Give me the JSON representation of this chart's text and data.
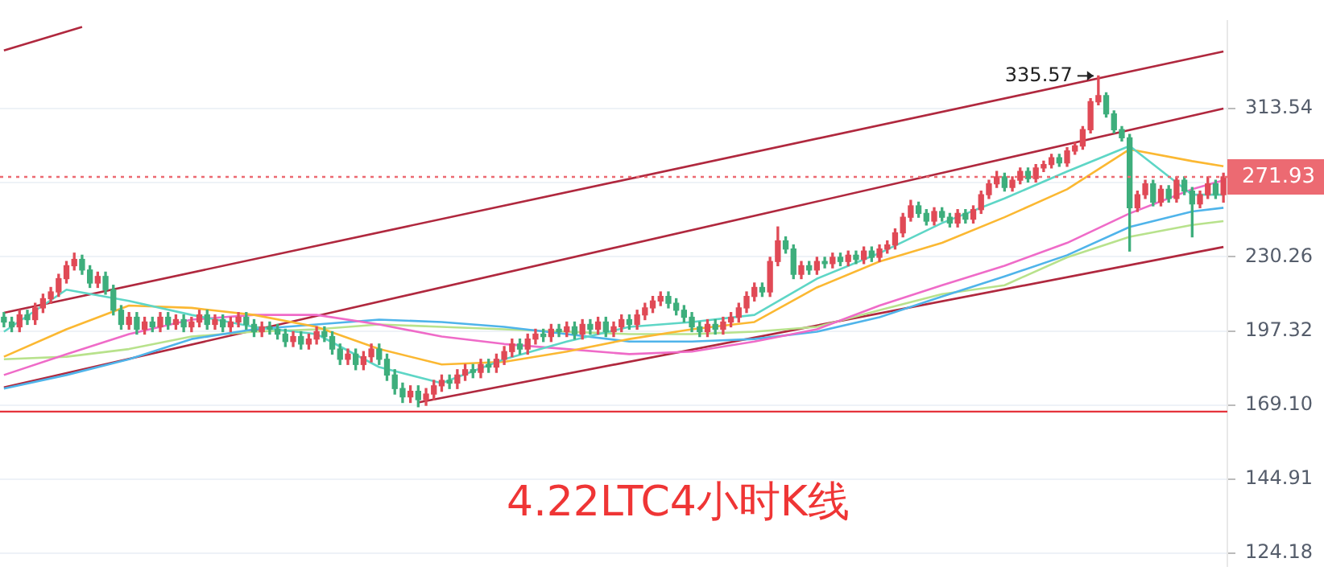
{
  "chart_data": {
    "type": "candlestick",
    "title": "4.22LTC4小时K线",
    "categories": [
      null,
      null,
      null,
      null,
      null,
      null,
      null,
      null,
      null,
      null,
      null,
      null,
      null,
      null,
      null,
      null,
      null,
      null,
      null,
      null,
      null,
      null,
      null,
      null,
      null,
      null,
      null,
      null,
      null,
      null,
      null,
      null,
      null,
      null,
      null,
      null,
      null,
      null,
      null,
      null,
      null,
      null,
      null,
      null,
      null,
      null,
      null,
      null,
      null,
      null,
      null,
      null,
      null,
      null,
      null,
      null,
      null,
      null,
      null,
      null,
      null,
      null,
      null,
      null,
      null,
      null,
      null,
      null,
      null,
      null,
      null,
      null,
      null,
      null,
      null,
      null,
      null,
      null,
      null,
      null,
      null,
      null,
      null,
      null,
      null,
      null,
      null,
      null,
      null,
      null,
      null,
      null,
      null,
      null,
      null,
      null,
      null,
      null,
      null,
      null,
      null,
      null,
      null,
      null,
      null,
      null,
      null,
      null,
      null,
      null,
      null,
      null,
      null,
      null,
      null,
      null,
      null,
      null,
      null,
      null,
      null,
      null,
      null,
      null,
      null,
      null,
      null,
      null,
      null,
      null,
      null,
      null,
      null,
      null,
      null,
      null,
      null,
      null,
      null,
      null,
      null,
      null,
      null,
      null,
      null,
      null,
      null,
      null,
      null,
      null,
      null,
      null,
      null,
      null,
      null,
      null,
      null
    ],
    "ohlc": [
      [
        203,
        205,
        199,
        201
      ],
      [
        201,
        203,
        197,
        199
      ],
      [
        199,
        206,
        197,
        204
      ],
      [
        204,
        206,
        200,
        202
      ],
      [
        202,
        209,
        200,
        207
      ],
      [
        207,
        213,
        205,
        211
      ],
      [
        211,
        216,
        209,
        214
      ],
      [
        214,
        222,
        212,
        220
      ],
      [
        220,
        228,
        218,
        226
      ],
      [
        226,
        232,
        224,
        229
      ],
      [
        229,
        231,
        222,
        224
      ],
      [
        224,
        226,
        216,
        218
      ],
      [
        218,
        223,
        216,
        221
      ],
      [
        221,
        223,
        213,
        215
      ],
      [
        215,
        217,
        204,
        206
      ],
      [
        206,
        208,
        198,
        200
      ],
      [
        200,
        205,
        198,
        203
      ],
      [
        203,
        205,
        196,
        198
      ],
      [
        198,
        203,
        196,
        201
      ],
      [
        201,
        203,
        197,
        199
      ],
      [
        199,
        205,
        197,
        203
      ],
      [
        203,
        205,
        198,
        200
      ],
      [
        200,
        204,
        198,
        202
      ],
      [
        202,
        204,
        197,
        199
      ],
      [
        199,
        203,
        197,
        201
      ],
      [
        201,
        206,
        199,
        204
      ],
      [
        204,
        206,
        198,
        200
      ],
      [
        200,
        204,
        198,
        202
      ],
      [
        202,
        204,
        197,
        199
      ],
      [
        199,
        203,
        197,
        201
      ],
      [
        201,
        205,
        199,
        203
      ],
      [
        203,
        205,
        198,
        200
      ],
      [
        200,
        202,
        195,
        197
      ],
      [
        197,
        201,
        195,
        199
      ],
      [
        199,
        201,
        196,
        198
      ],
      [
        198,
        200,
        194,
        196
      ],
      [
        196,
        198,
        191,
        193
      ],
      [
        193,
        197,
        191,
        195
      ],
      [
        195,
        197,
        190,
        192
      ],
      [
        192,
        196,
        190,
        194
      ],
      [
        194,
        199,
        192,
        197
      ],
      [
        197,
        199,
        193,
        195
      ],
      [
        195,
        197,
        188,
        190
      ],
      [
        190,
        192,
        184,
        186
      ],
      [
        186,
        190,
        184,
        188
      ],
      [
        188,
        190,
        182,
        184
      ],
      [
        184,
        189,
        182,
        187
      ],
      [
        187,
        192,
        185,
        190
      ],
      [
        190,
        192,
        184,
        186
      ],
      [
        186,
        188,
        178,
        180
      ],
      [
        180,
        182,
        173,
        175
      ],
      [
        175,
        177,
        170,
        172
      ],
      [
        172,
        176,
        170,
        174
      ],
      [
        174,
        176,
        168.5,
        171
      ],
      [
        171,
        175,
        169,
        173
      ],
      [
        173,
        178,
        171,
        176
      ],
      [
        176,
        180,
        174,
        178
      ],
      [
        178,
        180,
        175,
        177
      ],
      [
        177,
        182,
        175,
        180
      ],
      [
        180,
        184,
        178,
        182
      ],
      [
        182,
        184,
        179,
        181
      ],
      [
        181,
        186,
        179,
        184
      ],
      [
        184,
        186,
        181,
        183
      ],
      [
        183,
        188,
        181,
        186
      ],
      [
        186,
        191,
        184,
        189
      ],
      [
        189,
        194,
        187,
        192
      ],
      [
        192,
        194,
        188,
        190
      ],
      [
        190,
        196,
        188,
        194
      ],
      [
        194,
        198,
        192,
        196
      ],
      [
        196,
        198,
        193,
        195
      ],
      [
        195,
        200,
        193,
        198
      ],
      [
        198,
        200,
        195,
        197
      ],
      [
        197,
        201,
        195,
        199
      ],
      [
        199,
        201,
        194,
        196
      ],
      [
        196,
        202,
        194,
        200
      ],
      [
        200,
        202,
        196,
        198
      ],
      [
        198,
        203,
        196,
        201
      ],
      [
        201,
        203,
        195,
        197
      ],
      [
        197,
        201,
        195,
        199
      ],
      [
        199,
        204,
        197,
        202
      ],
      [
        202,
        204,
        198,
        200
      ],
      [
        200,
        206,
        198,
        204
      ],
      [
        204,
        209,
        202,
        207
      ],
      [
        207,
        212,
        205,
        210
      ],
      [
        210,
        214,
        208,
        212
      ],
      [
        212,
        214,
        207,
        209
      ],
      [
        209,
        211,
        204,
        206
      ],
      [
        206,
        208,
        201,
        203
      ],
      [
        203,
        205,
        197,
        199
      ],
      [
        199,
        201,
        195,
        197
      ],
      [
        197,
        202,
        195,
        200
      ],
      [
        200,
        202,
        196,
        198
      ],
      [
        198,
        203,
        196,
        201
      ],
      [
        201,
        205,
        199,
        203
      ],
      [
        203,
        209,
        201,
        207
      ],
      [
        207,
        214,
        205,
        212
      ],
      [
        212,
        218,
        210,
        216
      ],
      [
        216,
        218,
        212,
        214
      ],
      [
        214,
        230,
        212,
        228
      ],
      [
        228,
        245,
        226,
        238
      ],
      [
        238,
        240,
        232,
        234
      ],
      [
        234,
        236,
        220,
        222
      ],
      [
        222,
        228,
        220,
        226
      ],
      [
        226,
        228,
        222,
        224
      ],
      [
        224,
        230,
        222,
        228
      ],
      [
        228,
        230,
        225,
        227
      ],
      [
        227,
        232,
        225,
        230
      ],
      [
        230,
        232,
        226,
        228
      ],
      [
        228,
        233,
        226,
        231
      ],
      [
        231,
        233,
        227,
        229
      ],
      [
        229,
        235,
        227,
        233
      ],
      [
        233,
        235,
        228,
        230
      ],
      [
        230,
        236,
        228,
        234
      ],
      [
        234,
        238,
        232,
        236
      ],
      [
        236,
        244,
        234,
        242
      ],
      [
        242,
        252,
        240,
        250
      ],
      [
        250,
        259,
        248,
        256
      ],
      [
        256,
        258,
        250,
        252
      ],
      [
        252,
        254,
        246,
        248
      ],
      [
        248,
        255,
        246,
        253
      ],
      [
        253,
        255,
        248,
        250
      ],
      [
        250,
        252,
        245,
        247
      ],
      [
        247,
        254,
        245,
        252
      ],
      [
        252,
        254,
        247,
        249
      ],
      [
        249,
        256,
        247,
        254
      ],
      [
        254,
        264,
        252,
        262
      ],
      [
        262,
        270,
        260,
        268
      ],
      [
        268,
        275,
        266,
        272
      ],
      [
        272,
        274,
        264,
        266
      ],
      [
        266,
        272,
        264,
        270
      ],
      [
        270,
        277,
        268,
        275
      ],
      [
        275,
        277,
        269,
        271
      ],
      [
        271,
        279,
        269,
        277
      ],
      [
        277,
        281,
        275,
        279
      ],
      [
        279,
        285,
        277,
        283
      ],
      [
        283,
        285,
        278,
        280
      ],
      [
        280,
        289,
        278,
        287
      ],
      [
        287,
        292,
        285,
        290
      ],
      [
        290,
        302,
        288,
        300
      ],
      [
        300,
        320,
        298,
        318
      ],
      [
        318,
        335.57,
        316,
        322
      ],
      [
        322,
        324,
        308,
        310
      ],
      [
        310,
        312,
        298,
        300
      ],
      [
        300,
        302,
        293,
        295
      ],
      [
        295,
        297,
        233,
        255
      ],
      [
        255,
        264,
        253,
        262
      ],
      [
        262,
        270,
        260,
        268
      ],
      [
        268,
        270,
        256,
        258
      ],
      [
        258,
        267,
        256,
        265
      ],
      [
        265,
        267,
        258,
        260
      ],
      [
        260,
        272,
        258,
        270
      ],
      [
        270,
        272,
        262,
        264
      ],
      [
        264,
        266,
        240,
        257
      ],
      [
        257,
        264,
        255,
        262
      ],
      [
        262,
        272,
        260,
        268
      ],
      [
        268,
        270,
        260,
        262
      ],
      [
        262,
        274,
        258,
        271.93
      ]
    ],
    "colors": [
      "#3eae7c",
      "#3eae7c",
      "#e04a56",
      "#3eae7c",
      "#e04a56",
      "#e04a56",
      "#e04a56",
      "#e04a56",
      "#e04a56",
      "#e04a56",
      "#3eae7c",
      "#3eae7c",
      "#e04a56",
      "#3eae7c",
      "#3eae7c",
      "#3eae7c",
      "#e04a56",
      "#3eae7c",
      "#e04a56",
      "#3eae7c",
      "#e04a56",
      "#3eae7c",
      "#e04a56",
      "#3eae7c",
      "#e04a56",
      "#e04a56",
      "#3eae7c",
      "#e04a56",
      "#3eae7c",
      "#e04a56",
      "#e04a56",
      "#3eae7c",
      "#3eae7c",
      "#e04a56",
      "#3eae7c",
      "#3eae7c",
      "#3eae7c",
      "#e04a56",
      "#3eae7c",
      "#e04a56",
      "#e04a56",
      "#3eae7c",
      "#3eae7c",
      "#3eae7c",
      "#e04a56",
      "#3eae7c",
      "#e04a56",
      "#e04a56",
      "#3eae7c",
      "#3eae7c",
      "#3eae7c",
      "#3eae7c",
      "#e04a56",
      "#3eae7c",
      "#e04a56",
      "#e04a56",
      "#e04a56",
      "#3eae7c",
      "#e04a56",
      "#e04a56",
      "#3eae7c",
      "#e04a56",
      "#3eae7c",
      "#e04a56",
      "#e04a56",
      "#e04a56",
      "#3eae7c",
      "#e04a56",
      "#e04a56",
      "#3eae7c",
      "#e04a56",
      "#3eae7c",
      "#e04a56",
      "#3eae7c",
      "#e04a56",
      "#3eae7c",
      "#e04a56",
      "#3eae7c",
      "#e04a56",
      "#e04a56",
      "#3eae7c",
      "#e04a56",
      "#e04a56",
      "#e04a56",
      "#e04a56",
      "#3eae7c",
      "#3eae7c",
      "#3eae7c",
      "#3eae7c",
      "#3eae7c",
      "#e04a56",
      "#3eae7c",
      "#e04a56",
      "#e04a56",
      "#e04a56",
      "#e04a56",
      "#e04a56",
      "#3eae7c",
      "#e04a56",
      "#e04a56",
      "#3eae7c",
      "#3eae7c",
      "#e04a56",
      "#3eae7c",
      "#e04a56",
      "#3eae7c",
      "#e04a56",
      "#3eae7c",
      "#e04a56",
      "#3eae7c",
      "#e04a56",
      "#3eae7c",
      "#e04a56",
      "#e04a56",
      "#e04a56",
      "#e04a56",
      "#e04a56",
      "#3eae7c",
      "#3eae7c",
      "#e04a56",
      "#3eae7c",
      "#3eae7c",
      "#e04a56",
      "#3eae7c",
      "#e04a56",
      "#e04a56",
      "#e04a56",
      "#e04a56",
      "#3eae7c",
      "#e04a56",
      "#e04a56",
      "#3eae7c",
      "#e04a56",
      "#e04a56",
      "#e04a56",
      "#3eae7c",
      "#e04a56",
      "#e04a56",
      "#e04a56",
      "#e04a56",
      "#e04a56",
      "#3eae7c",
      "#3eae7c",
      "#3eae7c",
      "#3eae7c",
      "#e04a56",
      "#e04a56",
      "#3eae7c",
      "#e04a56",
      "#3eae7c",
      "#e04a56",
      "#3eae7c",
      "#3eae7c",
      "#e04a56",
      "#e04a56",
      "#3eae7c",
      "#e04a56"
    ],
    "series": [
      {
        "type": "line",
        "color": "#5ed6c6",
        "values": [
          197,
          null,
          null,
          null,
          null,
          null,
          null,
          null,
          215,
          null,
          null,
          null,
          null,
          null,
          null,
          null,
          210,
          null,
          null,
          null,
          null,
          null,
          null,
          null,
          204,
          null,
          null,
          null,
          null,
          null,
          null,
          null,
          199,
          null,
          null,
          null,
          null,
          null,
          null,
          null,
          196,
          null,
          null,
          null,
          null,
          null,
          null,
          null,
          183,
          null,
          null,
          null,
          null,
          null,
          null,
          null,
          177,
          null,
          null,
          null,
          null,
          null,
          null,
          null,
          186,
          null,
          null,
          null,
          null,
          null,
          null,
          null,
          193,
          null,
          null,
          null,
          null,
          null,
          null,
          null,
          199,
          null,
          null,
          null,
          null,
          null,
          null,
          null,
          201,
          null,
          null,
          null,
          null,
          null,
          null,
          null,
          204,
          null,
          null,
          null,
          null,
          null,
          null,
          null,
          220,
          null,
          null,
          null,
          null,
          null,
          null,
          null,
          232,
          null,
          null,
          null,
          null,
          null,
          null,
          null,
          247,
          null,
          null,
          null,
          null,
          null,
          null,
          null,
          260,
          null,
          null,
          null,
          null,
          null,
          null,
          null,
          275,
          null,
          null,
          null,
          null,
          null,
          null,
          null,
          290,
          null,
          null,
          null,
          null,
          null,
          null,
          null,
          262,
          null,
          null,
          null,
          262
        ]
      },
      {
        "type": "line",
        "color": "#fbb832",
        "values": [
          187,
          null,
          null,
          null,
          null,
          null,
          null,
          null,
          198,
          null,
          null,
          null,
          null,
          null,
          null,
          null,
          208,
          null,
          null,
          null,
          null,
          null,
          null,
          null,
          207,
          null,
          null,
          null,
          null,
          null,
          null,
          null,
          204,
          null,
          null,
          null,
          null,
          null,
          null,
          null,
          199,
          null,
          null,
          null,
          null,
          null,
          null,
          null,
          190,
          null,
          null,
          null,
          null,
          null,
          null,
          null,
          184,
          null,
          null,
          null,
          null,
          null,
          null,
          null,
          185,
          null,
          null,
          null,
          null,
          null,
          null,
          null,
          189,
          null,
          null,
          null,
          null,
          null,
          null,
          null,
          194,
          null,
          null,
          null,
          null,
          null,
          null,
          null,
          198,
          null,
          null,
          null,
          null,
          null,
          null,
          null,
          201,
          null,
          null,
          null,
          null,
          null,
          null,
          null,
          216,
          null,
          null,
          null,
          null,
          null,
          null,
          null,
          228,
          null,
          null,
          null,
          null,
          null,
          null,
          null,
          237,
          null,
          null,
          null,
          null,
          null,
          null,
          null,
          250,
          null,
          null,
          null,
          null,
          null,
          null,
          null,
          265,
          null,
          null,
          null,
          null,
          null,
          null,
          null,
          288,
          null,
          null,
          null,
          null,
          null,
          null,
          null,
          281,
          null,
          null,
          null,
          278
        ]
      },
      {
        "type": "line",
        "color": "#ef6bc8",
        "values": [
          180,
          null,
          null,
          null,
          null,
          null,
          null,
          null,
          188,
          null,
          null,
          null,
          null,
          null,
          null,
          null,
          196,
          null,
          null,
          null,
          null,
          null,
          null,
          null,
          202,
          null,
          null,
          null,
          null,
          null,
          null,
          null,
          204,
          null,
          null,
          null,
          null,
          null,
          null,
          null,
          204,
          null,
          null,
          null,
          null,
          null,
          null,
          null,
          200,
          null,
          null,
          null,
          null,
          null,
          null,
          null,
          195,
          null,
          null,
          null,
          null,
          null,
          null,
          null,
          192,
          null,
          null,
          null,
          null,
          null,
          null,
          null,
          190,
          null,
          null,
          null,
          null,
          null,
          null,
          null,
          188,
          null,
          null,
          null,
          null,
          null,
          null,
          null,
          189,
          null,
          null,
          null,
          null,
          null,
          null,
          null,
          193,
          null,
          null,
          null,
          null,
          null,
          null,
          null,
          198,
          null,
          null,
          null,
          null,
          null,
          null,
          null,
          208,
          null,
          null,
          null,
          null,
          null,
          null,
          null,
          217,
          null,
          null,
          null,
          null,
          null,
          null,
          null,
          226,
          null,
          null,
          null,
          null,
          null,
          null,
          null,
          237,
          null,
          null,
          null,
          null,
          null,
          null,
          null,
          252,
          null,
          null,
          null,
          null,
          null,
          null,
          null,
          265,
          null,
          null,
          null,
          270
        ]
      },
      {
        "type": "line",
        "color": "#4fb4ea",
        "values": [
          175,
          null,
          null,
          null,
          null,
          null,
          null,
          null,
          180,
          null,
          null,
          null,
          null,
          null,
          null,
          null,
          186,
          null,
          null,
          null,
          null,
          null,
          null,
          null,
          194,
          null,
          null,
          null,
          null,
          null,
          null,
          null,
          198,
          null,
          null,
          null,
          null,
          null,
          null,
          null,
          200,
          null,
          null,
          null,
          null,
          null,
          null,
          null,
          202,
          null,
          null,
          null,
          null,
          null,
          null,
          null,
          201,
          null,
          null,
          null,
          null,
          null,
          null,
          null,
          199,
          null,
          null,
          null,
          null,
          null,
          null,
          null,
          196,
          null,
          null,
          null,
          null,
          null,
          null,
          null,
          193,
          null,
          null,
          null,
          null,
          null,
          null,
          null,
          193,
          null,
          null,
          null,
          null,
          null,
          null,
          null,
          194,
          null,
          null,
          null,
          null,
          null,
          null,
          null,
          197,
          null,
          null,
          null,
          null,
          null,
          null,
          null,
          203,
          null,
          null,
          null,
          null,
          null,
          null,
          null,
          212,
          null,
          null,
          null,
          null,
          null,
          null,
          null,
          221,
          null,
          null,
          null,
          null,
          null,
          null,
          null,
          231,
          null,
          null,
          null,
          null,
          null,
          null,
          null,
          245,
          null,
          null,
          null,
          null,
          null,
          null,
          null,
          253,
          null,
          null,
          null,
          255
        ]
      },
      {
        "type": "line",
        "color": "#b8e28c",
        "values": [
          186,
          null,
          null,
          null,
          null,
          null,
          null,
          null,
          187,
          null,
          null,
          null,
          null,
          null,
          null,
          null,
          190,
          null,
          null,
          null,
          null,
          null,
          null,
          null,
          195,
          null,
          null,
          null,
          null,
          null,
          null,
          null,
          197,
          null,
          null,
          null,
          null,
          null,
          null,
          null,
          198,
          null,
          null,
          null,
          null,
          null,
          null,
          null,
          200,
          null,
          null,
          null,
          null,
          null,
          null,
          null,
          199,
          null,
          null,
          null,
          null,
          null,
          null,
          null,
          198,
          null,
          null,
          null,
          null,
          null,
          null,
          null,
          197,
          null,
          null,
          null,
          null,
          null,
          null,
          null,
          196,
          null,
          null,
          null,
          null,
          null,
          null,
          null,
          196,
          null,
          null,
          null,
          null,
          null,
          null,
          null,
          197,
          null,
          null,
          null,
          null,
          null,
          null,
          null,
          199,
          null,
          null,
          null,
          null,
          null,
          null,
          null,
          206,
          null,
          null,
          null,
          null,
          null,
          null,
          null,
          213,
          null,
          null,
          null,
          null,
          null,
          null,
          null,
          217,
          null,
          null,
          null,
          null,
          null,
          null,
          null,
          230,
          null,
          null,
          null,
          null,
          null,
          null,
          null,
          240,
          null,
          null,
          null,
          null,
          null,
          null,
          null,
          246,
          null,
          null,
          null,
          248
        ]
      },
      {
        "type": "line",
        "color": "#b0283e",
        "values": [
          353.8,
          null,
          null,
          null,
          null,
          null,
          null,
          null,
          null,
          null,
          371.5,
          null,
          null,
          null,
          null,
          null,
          null,
          null,
          null,
          null,
          null,
          null,
          null,
          null,
          null,
          null,
          null,
          null,
          null,
          null,
          null,
          null,
          null,
          null,
          null,
          null,
          null,
          null,
          null,
          null,
          null,
          null,
          null,
          null,
          null,
          null,
          null,
          null,
          null,
          null,
          null,
          null,
          null,
          null,
          null,
          null,
          null,
          null,
          null,
          null,
          null,
          null,
          null,
          null,
          null,
          null,
          null,
          null,
          null,
          null,
          null,
          null,
          null,
          null,
          null,
          null,
          null,
          null,
          null,
          null,
          null,
          null,
          null,
          null,
          null,
          null,
          null,
          null,
          null,
          null,
          null,
          null,
          null,
          null,
          null,
          null,
          null,
          null,
          null,
          null,
          null,
          null,
          null,
          null,
          null,
          null,
          null,
          null,
          null,
          null,
          null,
          null,
          null,
          null,
          null,
          null,
          null,
          null,
          null,
          null,
          null,
          null,
          null,
          null,
          null,
          null,
          null,
          null,
          null,
          null,
          null,
          null,
          null,
          null,
          null,
          null,
          null,
          null,
          null,
          null,
          null,
          null,
          null,
          null,
          null,
          null,
          null,
          null,
          null,
          null,
          null,
          null,
          null,
          null,
          null,
          null,
          null
        ]
      },
      {
        "type": "line",
        "color": "#b0283e",
        "values": [
          204.9,
          null,
          null,
          null,
          null,
          null,
          null,
          null,
          null,
          null,
          null,
          null,
          null,
          null,
          null,
          null,
          null,
          null,
          null,
          null,
          null,
          null,
          null,
          null,
          null,
          null,
          null,
          null,
          null,
          null,
          null,
          null,
          null,
          null,
          null,
          null,
          null,
          null,
          null,
          null,
          null,
          null,
          null,
          null,
          null,
          null,
          null,
          null,
          null,
          null,
          null,
          null,
          null,
          null,
          null,
          null,
          null,
          null,
          null,
          null,
          null,
          null,
          null,
          null,
          null,
          null,
          null,
          null,
          null,
          null,
          null,
          null,
          null,
          null,
          null,
          null,
          null,
          null,
          null,
          null,
          null,
          null,
          null,
          null,
          null,
          null,
          null,
          null,
          null,
          null,
          null,
          null,
          null,
          null,
          null,
          null,
          null,
          null,
          null,
          null,
          null,
          null,
          null,
          null,
          null,
          null,
          null,
          null,
          null,
          null,
          null,
          null,
          null,
          null,
          null,
          null,
          null,
          null,
          null,
          null,
          null,
          null,
          null,
          null,
          null,
          null,
          null,
          null,
          null,
          null,
          null,
          null,
          null,
          null,
          null,
          null,
          null,
          null,
          null,
          null,
          null,
          null,
          null,
          null,
          null,
          null,
          null,
          null,
          null,
          null,
          null,
          null,
          null,
          null,
          null,
          null,
          353
        ]
      },
      {
        "type": "line",
        "color": "#b0283e",
        "values": [
          175.4,
          null,
          null,
          null,
          null,
          null,
          null,
          null,
          null,
          null,
          null,
          null,
          null,
          null,
          null,
          null,
          null,
          null,
          null,
          null,
          null,
          null,
          null,
          null,
          null,
          null,
          null,
          null,
          null,
          null,
          null,
          null,
          null,
          null,
          null,
          null,
          null,
          null,
          null,
          null,
          null,
          null,
          null,
          null,
          null,
          null,
          null,
          null,
          null,
          null,
          null,
          null,
          null,
          null,
          null,
          null,
          null,
          null,
          null,
          null,
          null,
          null,
          null,
          null,
          null,
          null,
          null,
          null,
          null,
          null,
          null,
          null,
          null,
          null,
          null,
          null,
          null,
          null,
          null,
          null,
          null,
          null,
          null,
          null,
          null,
          null,
          null,
          null,
          null,
          null,
          null,
          null,
          null,
          null,
          null,
          null,
          null,
          null,
          null,
          null,
          null,
          null,
          null,
          null,
          null,
          null,
          null,
          null,
          null,
          null,
          null,
          null,
          null,
          null,
          null,
          null,
          null,
          null,
          null,
          null,
          null,
          null,
          null,
          null,
          null,
          null,
          null,
          null,
          null,
          null,
          null,
          null,
          null,
          null,
          null,
          null,
          null,
          null,
          null,
          null,
          null,
          null,
          null,
          null,
          null,
          null,
          null,
          null,
          null,
          null,
          null,
          null,
          null,
          null,
          null,
          null,
          313.5
        ]
      },
      {
        "type": "line",
        "color": "#b0283e",
        "values": [
          null,
          null,
          null,
          null,
          null,
          null,
          null,
          null,
          null,
          null,
          null,
          null,
          null,
          null,
          null,
          null,
          null,
          null,
          null,
          null,
          null,
          null,
          null,
          null,
          null,
          null,
          null,
          null,
          null,
          null,
          null,
          null,
          null,
          null,
          null,
          null,
          null,
          null,
          null,
          null,
          null,
          null,
          null,
          null,
          null,
          null,
          null,
          null,
          null,
          null,
          null,
          null,
          null,
          170,
          null,
          null,
          null,
          null,
          null,
          null,
          null,
          null,
          null,
          null,
          null,
          null,
          null,
          null,
          null,
          null,
          null,
          null,
          null,
          null,
          null,
          null,
          null,
          null,
          null,
          null,
          null,
          null,
          null,
          null,
          null,
          null,
          null,
          null,
          null,
          null,
          null,
          null,
          null,
          null,
          null,
          null,
          null,
          null,
          null,
          null,
          null,
          null,
          null,
          null,
          null,
          null,
          null,
          null,
          null,
          null,
          null,
          null,
          null,
          null,
          null,
          null,
          null,
          null,
          null,
          null,
          null,
          null,
          null,
          null,
          null,
          null,
          null,
          null,
          null,
          null,
          null,
          null,
          null,
          null,
          null,
          null,
          null,
          null,
          null,
          null,
          null,
          null,
          null,
          null,
          null,
          null,
          null,
          null,
          null,
          null,
          null,
          null,
          null,
          null,
          null,
          null,
          235
        ]
      }
    ],
    "ylim": [
      121,
      376
    ],
    "yticks": [
      124.18,
      144.91,
      {
        "value": 169.1,
        "label": "169.10"
      },
      197.32,
      230.26,
      {
        "value": 268.69,
        "label": null
      },
      313.54
    ],
    "log": "y",
    "grid": "y",
    "tick_labels": "y",
    "marker": "none",
    "ref_lines": [
      {
        "axis": "y",
        "value": 166.8,
        "color": "#e5333b"
      },
      {
        "axis": "y",
        "value": 271.93,
        "label": "271.93",
        "color": "#ec6a72",
        "line_style": "dotted"
      }
    ],
    "annotations": [
      "335.57"
    ]
  }
}
